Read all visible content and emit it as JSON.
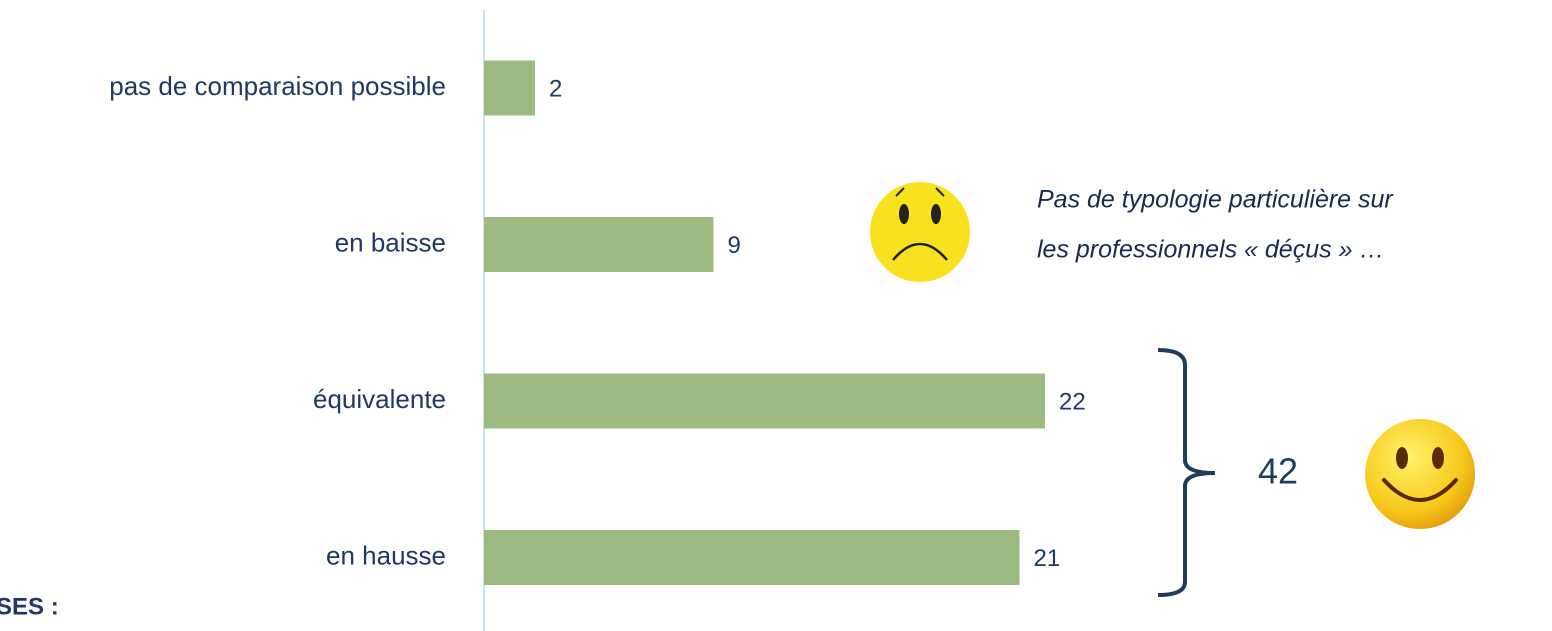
{
  "chart_data": {
    "type": "bar",
    "orientation": "horizontal",
    "categories": [
      "pas de comparaison possible",
      "en baisse",
      "équivalente",
      "en hausse"
    ],
    "values": [
      2,
      9,
      22,
      21
    ],
    "color": "#9bbb80",
    "xlim": [
      0,
      40
    ],
    "annotations": [
      "Pas de typologie particulière sur",
      "les professionnels « déçus » …"
    ],
    "bracket_label": "42",
    "footer_fragment": "SES :"
  }
}
